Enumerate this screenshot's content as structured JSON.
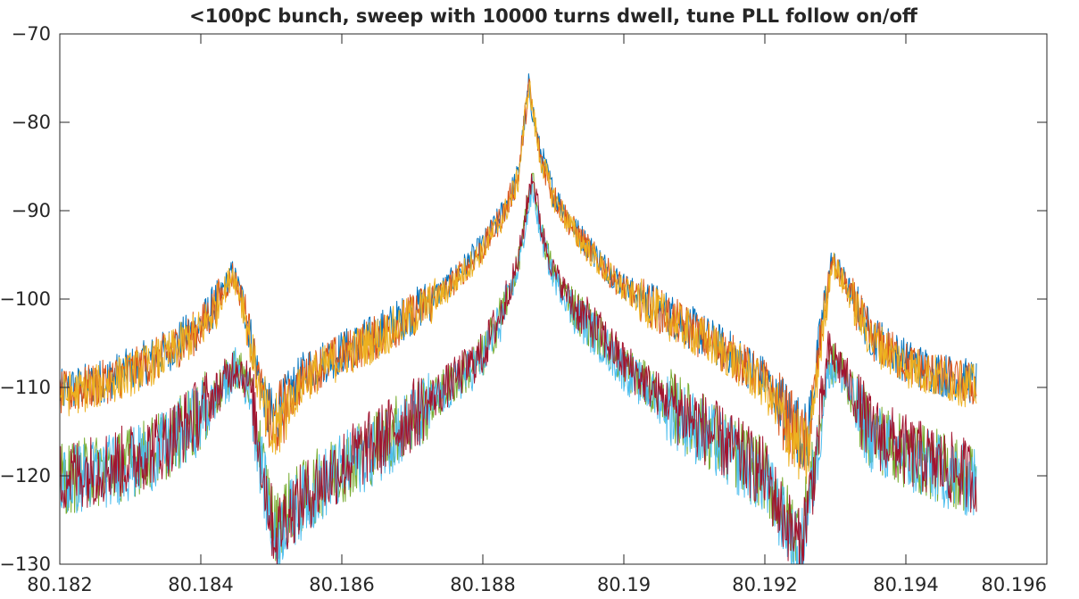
{
  "chart_data": {
    "type": "line",
    "title": "<100pC bunch, sweep with 10000 turns dwell, tune PLL follow on/off",
    "xlabel": "",
    "ylabel": "",
    "xlim": [
      80.182,
      80.196
    ],
    "ylim": [
      -130,
      -70
    ],
    "x_ticks": [
      "80.182",
      "80.184",
      "80.186",
      "80.188",
      "80.19",
      "80.192",
      "80.194",
      "80.196"
    ],
    "y_ticks": [
      "-70",
      "-80",
      "-90",
      "-100",
      "-110",
      "-120",
      "-130"
    ],
    "grid": false,
    "legend": "none",
    "x_range_of_data": [
      80.182,
      80.195
    ],
    "series": [
      {
        "color": "#0072BD",
        "x": [
          80.182,
          80.1825,
          80.183,
          80.1835,
          80.184,
          80.18425,
          80.18445,
          80.1846,
          80.1848,
          80.185,
          80.1852,
          80.1855,
          80.186,
          80.1865,
          80.187,
          80.1875,
          80.188,
          80.1883,
          80.1885,
          80.18865,
          80.1888,
          80.189,
          80.1893,
          80.1897,
          80.19,
          80.1905,
          80.191,
          80.1915,
          80.192,
          80.1923,
          80.1926,
          80.1928,
          80.19295,
          80.1932,
          80.1935,
          80.194,
          80.1945,
          80.195
        ],
        "y": [
          -110.5,
          -109.5,
          -108,
          -106,
          -103,
          -100,
          -97,
          -100,
          -108,
          -114,
          -111,
          -108,
          -106,
          -104,
          -101.5,
          -98.5,
          -94,
          -90,
          -86,
          -76,
          -83,
          -88,
          -92,
          -96,
          -98.5,
          -101,
          -103.5,
          -106,
          -109,
          -113,
          -116,
          -103,
          -95.5,
          -99,
          -104,
          -107,
          -108.5,
          -109.5
        ]
      },
      {
        "color": "#D95319",
        "x": [
          80.182,
          80.1825,
          80.183,
          80.1835,
          80.184,
          80.18425,
          80.18445,
          80.1846,
          80.1848,
          80.185,
          80.1852,
          80.1855,
          80.186,
          80.1865,
          80.187,
          80.1875,
          80.188,
          80.1883,
          80.1885,
          80.18865,
          80.1888,
          80.189,
          80.1893,
          80.1897,
          80.19,
          80.1905,
          80.191,
          80.1915,
          80.192,
          80.1923,
          80.1926,
          80.1928,
          80.19295,
          80.1932,
          80.1935,
          80.194,
          80.1945,
          80.195
        ],
        "y": [
          -110.8,
          -109.8,
          -108.3,
          -106.3,
          -103.3,
          -100.2,
          -97.2,
          -100.3,
          -108.5,
          -115,
          -112,
          -108.5,
          -106.3,
          -104.3,
          -101.8,
          -98.8,
          -94.3,
          -90.2,
          -86.3,
          -75.8,
          -83.3,
          -88.3,
          -92.3,
          -96.3,
          -98.8,
          -101.3,
          -103.8,
          -106.3,
          -109.3,
          -113.5,
          -117,
          -104,
          -95.8,
          -99.3,
          -104.3,
          -107.3,
          -108.8,
          -109.8
        ]
      },
      {
        "color": "#EDB120",
        "x": [
          80.182,
          80.1825,
          80.183,
          80.1835,
          80.184,
          80.18425,
          80.18445,
          80.1846,
          80.1848,
          80.185,
          80.1852,
          80.1855,
          80.186,
          80.1865,
          80.187,
          80.1875,
          80.188,
          80.1883,
          80.1885,
          80.18865,
          80.1888,
          80.189,
          80.1893,
          80.1897,
          80.19,
          80.1905,
          80.191,
          80.1915,
          80.192,
          80.1923,
          80.1926,
          80.1928,
          80.19295,
          80.1932,
          80.1935,
          80.194,
          80.1945,
          80.195
        ],
        "y": [
          -111,
          -110,
          -108.5,
          -106.5,
          -103.5,
          -100.5,
          -97,
          -100.5,
          -109,
          -116,
          -112.5,
          -109,
          -106.5,
          -104.5,
          -102,
          -99,
          -94.5,
          -90.5,
          -86.5,
          -75.7,
          -83.5,
          -88.5,
          -92.5,
          -96.5,
          -99,
          -101.5,
          -104,
          -106.5,
          -110,
          -114.5,
          -118,
          -105,
          -95.7,
          -99.5,
          -104.5,
          -107.5,
          -109,
          -110
        ]
      },
      {
        "color": "#77AC30",
        "x": [
          80.182,
          80.1825,
          80.183,
          80.1835,
          80.184,
          80.1843,
          80.1845,
          80.1847,
          80.1849,
          80.18505,
          80.1852,
          80.1855,
          80.186,
          80.1865,
          80.187,
          80.1875,
          80.188,
          80.1883,
          80.1885,
          80.1887,
          80.18885,
          80.189,
          80.1893,
          80.1897,
          80.19,
          80.1905,
          80.191,
          80.1915,
          80.192,
          80.19225,
          80.1925,
          80.1927,
          80.1929,
          80.1931,
          80.1933,
          80.1935,
          80.194,
          80.1945,
          80.195
        ],
        "y": [
          -120.5,
          -119.5,
          -118.5,
          -116.5,
          -113,
          -110,
          -107.5,
          -110,
          -120,
          -126,
          -124,
          -122,
          -119,
          -116.5,
          -113.5,
          -110,
          -106.5,
          -101,
          -96,
          -86.5,
          -93,
          -97,
          -101,
          -104.5,
          -107.5,
          -111,
          -114,
          -117,
          -120,
          -124,
          -127,
          -119,
          -107,
          -108,
          -112,
          -115,
          -117.5,
          -119,
          -120.5
        ]
      },
      {
        "color": "#4DBEEE",
        "x": [
          80.182,
          80.1825,
          80.183,
          80.1835,
          80.184,
          80.1843,
          80.1845,
          80.1847,
          80.1849,
          80.18505,
          80.1852,
          80.1855,
          80.186,
          80.1865,
          80.187,
          80.1875,
          80.188,
          80.1883,
          80.1885,
          80.1887,
          80.18885,
          80.189,
          80.1893,
          80.1897,
          80.19,
          80.1905,
          80.191,
          80.1915,
          80.192,
          80.19225,
          80.1925,
          80.1927,
          80.1929,
          80.1931,
          80.1933,
          80.1935,
          80.194,
          80.1945,
          80.195
        ],
        "y": [
          -120.8,
          -119.8,
          -118.8,
          -116.8,
          -113.3,
          -110.3,
          -107.8,
          -110.5,
          -121,
          -128,
          -125,
          -122.5,
          -119.3,
          -116.8,
          -113.8,
          -110.3,
          -106.8,
          -101.5,
          -96.5,
          -87.5,
          -93.5,
          -97.5,
          -101.5,
          -105,
          -108,
          -111.5,
          -114.5,
          -117.5,
          -120.5,
          -125,
          -129,
          -120,
          -107.5,
          -108.5,
          -112.5,
          -115.5,
          -118,
          -119.5,
          -121
        ]
      },
      {
        "color": "#A2142F",
        "x": [
          80.182,
          80.1825,
          80.183,
          80.1835,
          80.184,
          80.1843,
          80.1845,
          80.1847,
          80.1849,
          80.18505,
          80.1852,
          80.1855,
          80.186,
          80.1865,
          80.187,
          80.1875,
          80.188,
          80.1883,
          80.1885,
          80.1887,
          80.18885,
          80.189,
          80.1893,
          80.1897,
          80.19,
          80.1905,
          80.191,
          80.1915,
          80.192,
          80.19225,
          80.1925,
          80.1927,
          80.1929,
          80.1931,
          80.1933,
          80.1935,
          80.194,
          80.1945,
          80.195
        ],
        "y": [
          -120.2,
          -119.2,
          -118.2,
          -116.2,
          -112.8,
          -109.8,
          -107.2,
          -109.8,
          -120.5,
          -127,
          -124.5,
          -122.2,
          -118.8,
          -116.2,
          -113.2,
          -109.8,
          -106.2,
          -100.8,
          -95.8,
          -85.8,
          -92.8,
          -96.8,
          -100.8,
          -104.2,
          -107.2,
          -110.8,
          -113.8,
          -116.8,
          -119.8,
          -124.5,
          -128,
          -119.5,
          -106,
          -107.8,
          -111.8,
          -114.8,
          -117.2,
          -118.8,
          -120.2
        ]
      }
    ]
  }
}
